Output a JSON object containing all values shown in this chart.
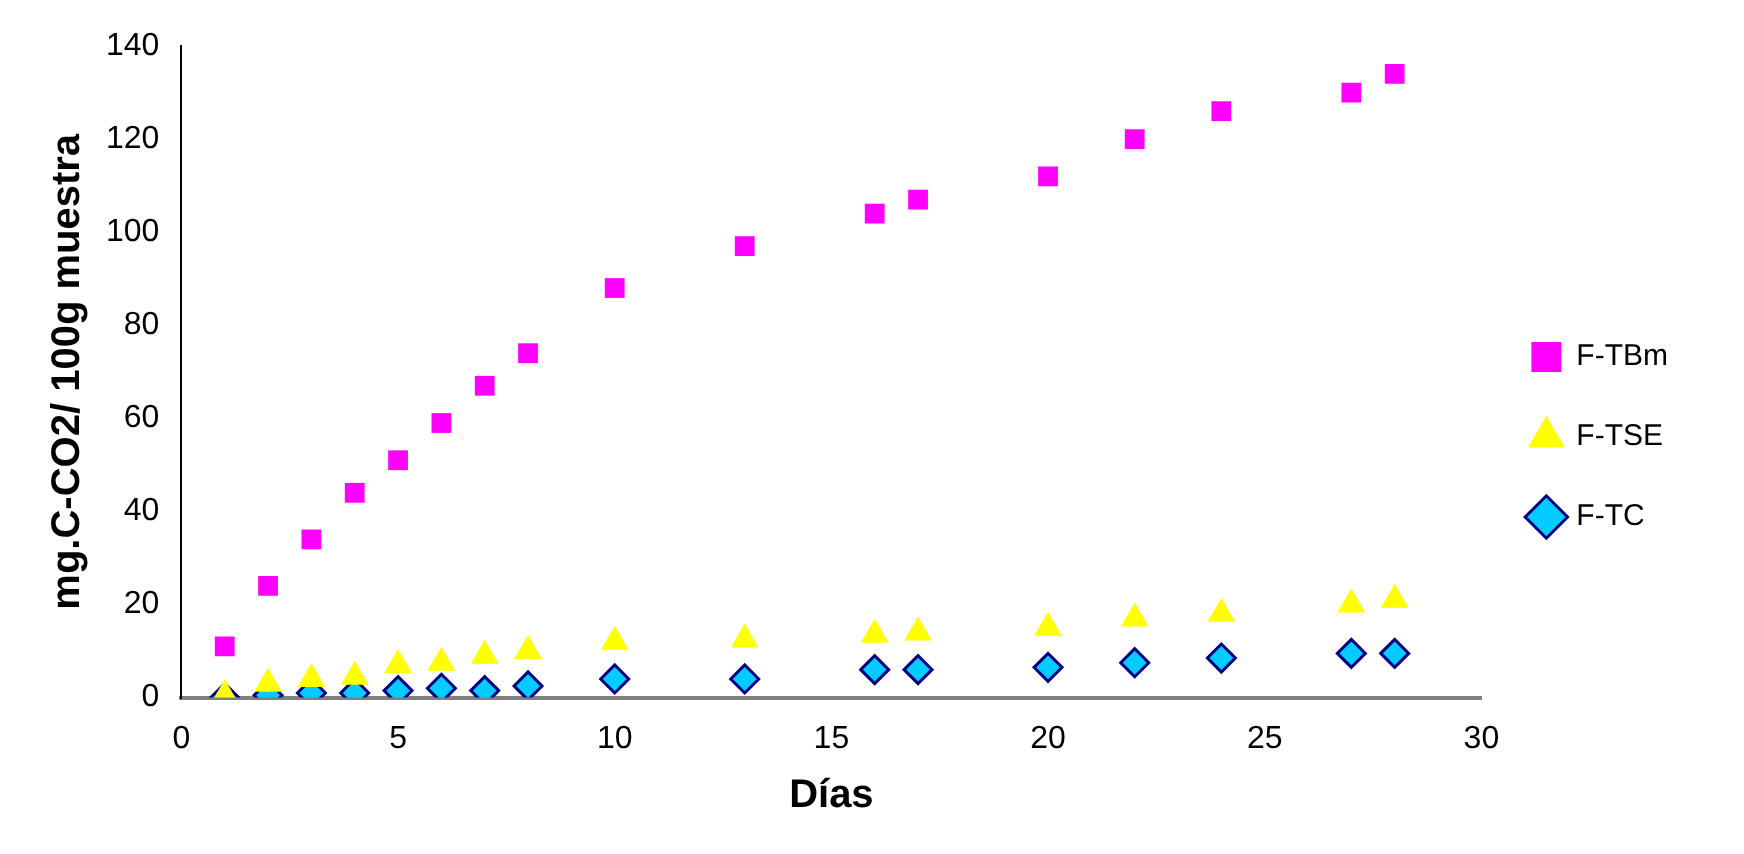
{
  "chart_data": {
    "type": "scatter",
    "xlabel": "Días",
    "ylabel": "mg.C-CO2/ 100g muestra",
    "x": [
      1,
      2,
      3,
      4,
      5,
      6,
      7,
      8,
      10,
      13,
      16,
      17,
      20,
      22,
      24,
      27,
      28
    ],
    "series": [
      {
        "name": "F-TBm",
        "color": "#ff00ff",
        "marker": "square",
        "values": [
          11,
          24,
          34,
          44,
          51,
          59,
          67,
          74,
          88,
          97,
          104,
          107,
          112,
          120,
          126,
          130,
          134
        ]
      },
      {
        "name": "F-TSE",
        "color": "#ffff00",
        "marker": "triangle",
        "values": [
          0.5,
          3,
          4,
          4.5,
          7,
          7.5,
          9,
          10,
          12,
          12.5,
          13.5,
          14,
          15,
          17,
          18,
          20,
          21
        ]
      },
      {
        "name": "F-TC",
        "color": "#00ccff",
        "marker": "diamond",
        "values": [
          0,
          0.5,
          1,
          1,
          1.5,
          2,
          1.5,
          2.5,
          4,
          4,
          6,
          6,
          6.5,
          7.5,
          8.5,
          9.5,
          9.5
        ]
      }
    ],
    "xlim": [
      0,
      30
    ],
    "xticks": [
      0,
      5,
      10,
      15,
      20,
      25,
      30
    ],
    "ylim": [
      0,
      140
    ],
    "yticks": [
      0,
      20,
      40,
      60,
      80,
      100,
      120,
      140
    ],
    "grid": false,
    "legend": "right"
  }
}
